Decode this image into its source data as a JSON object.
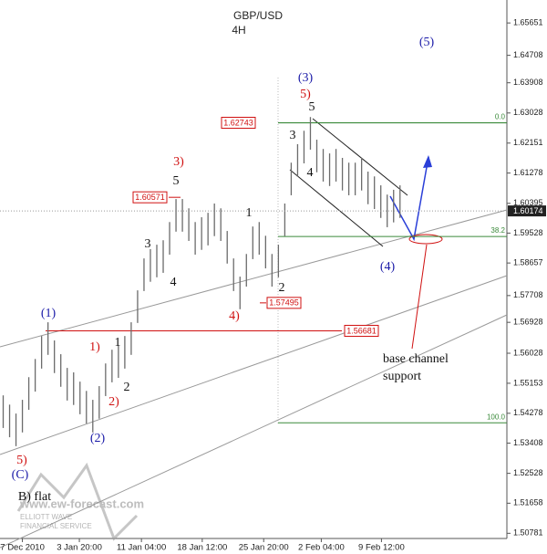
{
  "chart_data": {
    "type": "ohlc",
    "title": "GBP/USD",
    "subtitle": "4H",
    "color": "#6b6b6b",
    "high": [
      1.548,
      1.5453,
      1.5427,
      1.5467,
      1.5533,
      1.5586,
      1.5653,
      1.5693,
      1.564,
      1.56,
      1.556,
      1.5547,
      1.552,
      1.5493,
      1.5467,
      1.5507,
      1.5573,
      1.5613,
      1.5626,
      1.5653,
      1.5693,
      1.5786,
      1.5879,
      1.5906,
      1.5919,
      1.5932,
      1.5985,
      1.6052,
      1.6052,
      1.6025,
      1.5985,
      1.5999,
      1.6012,
      1.6039,
      1.6025,
      1.5959,
      1.5879,
      1.5826,
      1.5892,
      1.5972,
      1.5985,
      1.5945,
      1.5892,
      1.5919,
      1.6039,
      1.6158,
      1.6212,
      1.6251,
      1.6291,
      1.6225,
      1.6198,
      1.6185,
      1.6198,
      1.6172,
      1.6158,
      1.6158,
      1.6172,
      1.6132,
      1.6118,
      1.6092,
      1.6065,
      1.6079,
      1.6092
    ],
    "low": [
      1.5385,
      1.5358,
      1.5332,
      1.5372,
      1.5438,
      1.5491,
      1.5558,
      1.5598,
      1.5545,
      1.5505,
      1.5465,
      1.5452,
      1.5425,
      1.5398,
      1.5372,
      1.5412,
      1.5478,
      1.5518,
      1.5531,
      1.5558,
      1.5598,
      1.5691,
      1.5784,
      1.5811,
      1.5824,
      1.5837,
      1.589,
      1.5957,
      1.5957,
      1.593,
      1.589,
      1.5904,
      1.5917,
      1.5944,
      1.593,
      1.5864,
      1.5784,
      1.5731,
      1.5797,
      1.5877,
      1.589,
      1.585,
      1.5797,
      1.5824,
      1.5944,
      1.6063,
      1.6117,
      1.6156,
      1.6196,
      1.613,
      1.6103,
      1.609,
      1.6103,
      1.6077,
      1.6063,
      1.6063,
      1.6077,
      1.6037,
      1.6023,
      1.5997,
      1.597,
      1.5984,
      1.5997
    ],
    "xlim": [
      -0.5,
      78.7
    ],
    "xticks": [
      {
        "value": 3,
        "label": "7 Dec 2010"
      },
      {
        "value": 11.9,
        "label": "3 Jan 20:00"
      },
      {
        "value": 21.6,
        "label": "11 Jan 04:00"
      },
      {
        "value": 31.1,
        "label": "18 Jan 12:00"
      },
      {
        "value": 40.7,
        "label": "25 Jan 20:00"
      },
      {
        "value": 49.7,
        "label": "2 Feb 04:00"
      },
      {
        "value": 59.1,
        "label": "9 Feb 12:00"
      }
    ],
    "ylim": [
      1.5063,
      1.6632
    ],
    "yticks": [
      1.65651,
      1.64708,
      1.63908,
      1.63028,
      1.62151,
      1.61278,
      1.60395,
      1.59528,
      1.58657,
      1.57708,
      1.56928,
      1.56028,
      1.55153,
      1.54278,
      1.53408,
      1.52528,
      1.51658,
      1.50781
    ],
    "last_price": 1.60174,
    "price_levels": [
      1.62743,
      1.60571,
      1.57495,
      1.56681
    ],
    "fib_levels": [
      {
        "value": 1.6274,
        "label": "0.0"
      },
      {
        "value": 1.5943,
        "label": "38.2"
      },
      {
        "value": 1.54,
        "label": "100.0"
      }
    ],
    "annotations": [
      {
        "text": "(1)",
        "color": "#1a1aa8"
      },
      {
        "text": "1)",
        "color": "#d01010"
      },
      {
        "text": "1",
        "color": "#111"
      },
      {
        "text": "2",
        "color": "#111"
      },
      {
        "text": "2)",
        "color": "#d01010"
      },
      {
        "text": "(2)",
        "color": "#1a1aa8"
      },
      {
        "text": "3",
        "color": "#111"
      },
      {
        "text": "5",
        "color": "#111"
      },
      {
        "text": "3)",
        "color": "#d01010"
      },
      {
        "text": "4",
        "color": "#111"
      },
      {
        "text": "1",
        "color": "#111"
      },
      {
        "text": "4)",
        "color": "#d01010"
      },
      {
        "text": "2",
        "color": "#111"
      },
      {
        "text": "(3)",
        "color": "#1a1aa8"
      },
      {
        "text": "5)",
        "color": "#d01010"
      },
      {
        "text": "5",
        "color": "#111"
      },
      {
        "text": "3",
        "color": "#111"
      },
      {
        "text": "4",
        "color": "#111"
      },
      {
        "text": "(4)",
        "color": "#1a1aa8"
      },
      {
        "text": "(5)",
        "color": "#1a1aa8"
      },
      {
        "text": "5)",
        "color": "#d01010"
      },
      {
        "text": "(C)",
        "color": "#1a1aa8"
      },
      {
        "text": "B) flat",
        "color": "#111"
      }
    ],
    "note": [
      "base channel",
      "support"
    ],
    "watermark": [
      "www.ew-forecast.com",
      "ELLIOTT WAVE",
      "FINANCIAL SERVICE"
    ]
  }
}
